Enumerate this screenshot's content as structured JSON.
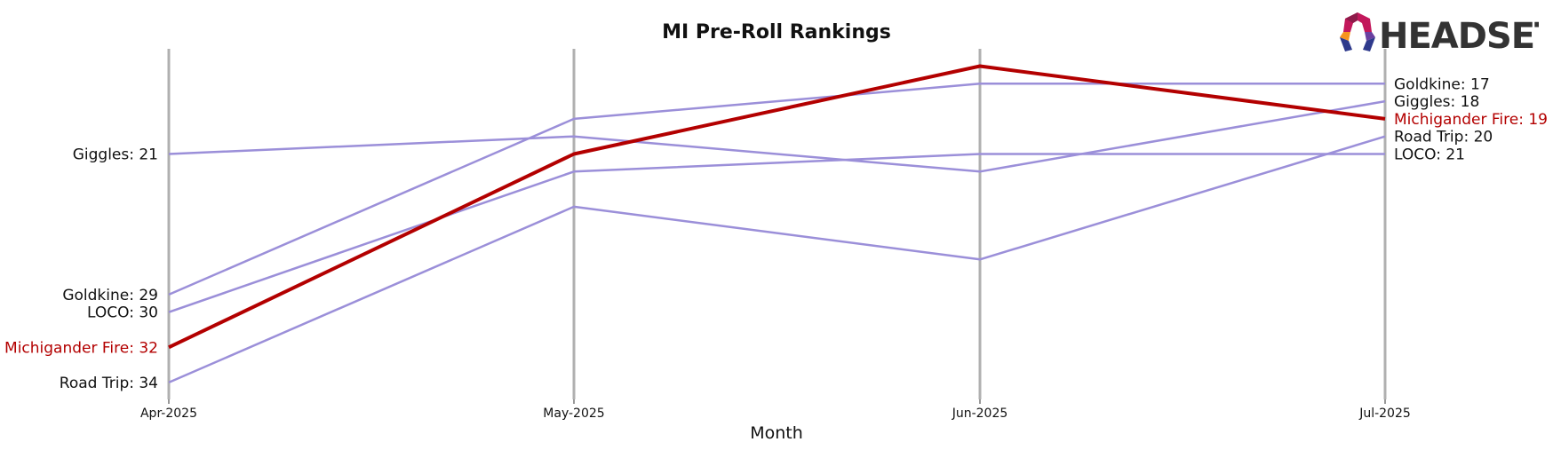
{
  "chart_data": {
    "type": "line",
    "title": "MI Pre-Roll Rankings",
    "xlabel": "Month",
    "ylabel": "",
    "categories": [
      "Apr-2025",
      "May-2025",
      "Jun-2025",
      "Jul-2025"
    ],
    "y_inverted": true,
    "y_range": [
      36,
      15
    ],
    "series": [
      {
        "name": "Giggles",
        "values": [
          21,
          20,
          22,
          18
        ],
        "color": "#9b8fd9",
        "highlight": false
      },
      {
        "name": "Goldkine",
        "values": [
          29,
          19,
          17,
          17
        ],
        "color": "#9b8fd9",
        "highlight": false
      },
      {
        "name": "LOCO",
        "values": [
          30,
          22,
          21,
          21
        ],
        "color": "#9b8fd9",
        "highlight": false
      },
      {
        "name": "Michigander Fire",
        "values": [
          32,
          21,
          16,
          19
        ],
        "color": "#b30000",
        "highlight": true
      },
      {
        "name": "Road Trip",
        "values": [
          34,
          24,
          27,
          20
        ],
        "color": "#9b8fd9",
        "highlight": false
      }
    ],
    "left_labels": [
      "Giggles: 21",
      "Goldkine: 29",
      "LOCO: 30",
      "Michigander Fire: 32",
      "Road Trip: 34"
    ],
    "right_labels": [
      "Goldkine: 17",
      "Giggles: 18",
      "Michigander Fire: 19",
      "Road Trip: 20",
      "LOCO: 21"
    ],
    "grid": "vertical",
    "legend": "none"
  },
  "logo": {
    "text": "HEADSET"
  },
  "colors": {
    "highlight": "#b30000",
    "series": "#9b8fd9",
    "gridline": "#b0b0b0"
  }
}
